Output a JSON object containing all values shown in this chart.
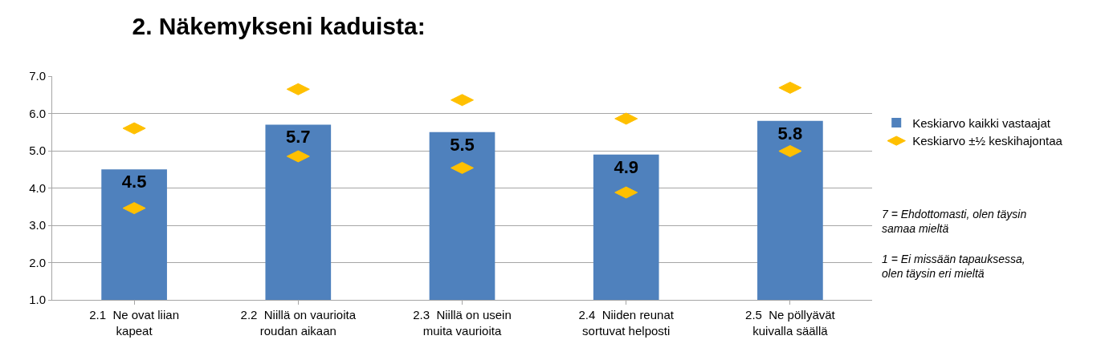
{
  "chart_data": {
    "type": "bar",
    "title": "2. Näkemykseni kaduista:",
    "categories": [
      "2.1  Ne ovat liian kapeat",
      "2.2  Niillä on vaurioita roudan aikaan",
      "2.3  Niillä on usein muita vaurioita",
      "2.4  Niiden reunat sortuvat helposti",
      "2.5  Ne pöllyävät kuivalla säällä"
    ],
    "series": [
      {
        "name": "Keskiarvo kaikki vastaajat",
        "color": "#4f81bd",
        "values": [
          4.5,
          5.7,
          5.5,
          4.9,
          5.8
        ],
        "value_labels": [
          "4.5",
          "5.7",
          "5.5",
          "4.9",
          "5.8"
        ]
      },
      {
        "type": "scatter",
        "name": "Keskiarvo ±½ keskihajontaa",
        "color": "#ffc000",
        "values": [
          5.6,
          6.65,
          6.36,
          5.86,
          6.69
        ]
      },
      {
        "type": "scatter",
        "color": "#ffc000",
        "values": [
          3.46,
          4.85,
          4.54,
          3.88,
          4.99
        ]
      }
    ],
    "ylim": [
      1,
      7
    ],
    "yticks": [
      {
        "value": 1,
        "label": "1.0"
      },
      {
        "value": 2,
        "label": "2.0"
      },
      {
        "value": 3,
        "label": "3.0"
      },
      {
        "value": 4,
        "label": "4.0"
      },
      {
        "value": 5,
        "label": "5.0"
      },
      {
        "value": 6,
        "label": "6.0"
      },
      {
        "value": 7,
        "label": "7.0"
      }
    ],
    "grid": "y",
    "legend": "right",
    "annotations": [
      "7 = Ehdottomasti, olen täysin samaa mieltä",
      "1 = Ei missään tapauksessa, olen täysin eri mieltä"
    ]
  }
}
